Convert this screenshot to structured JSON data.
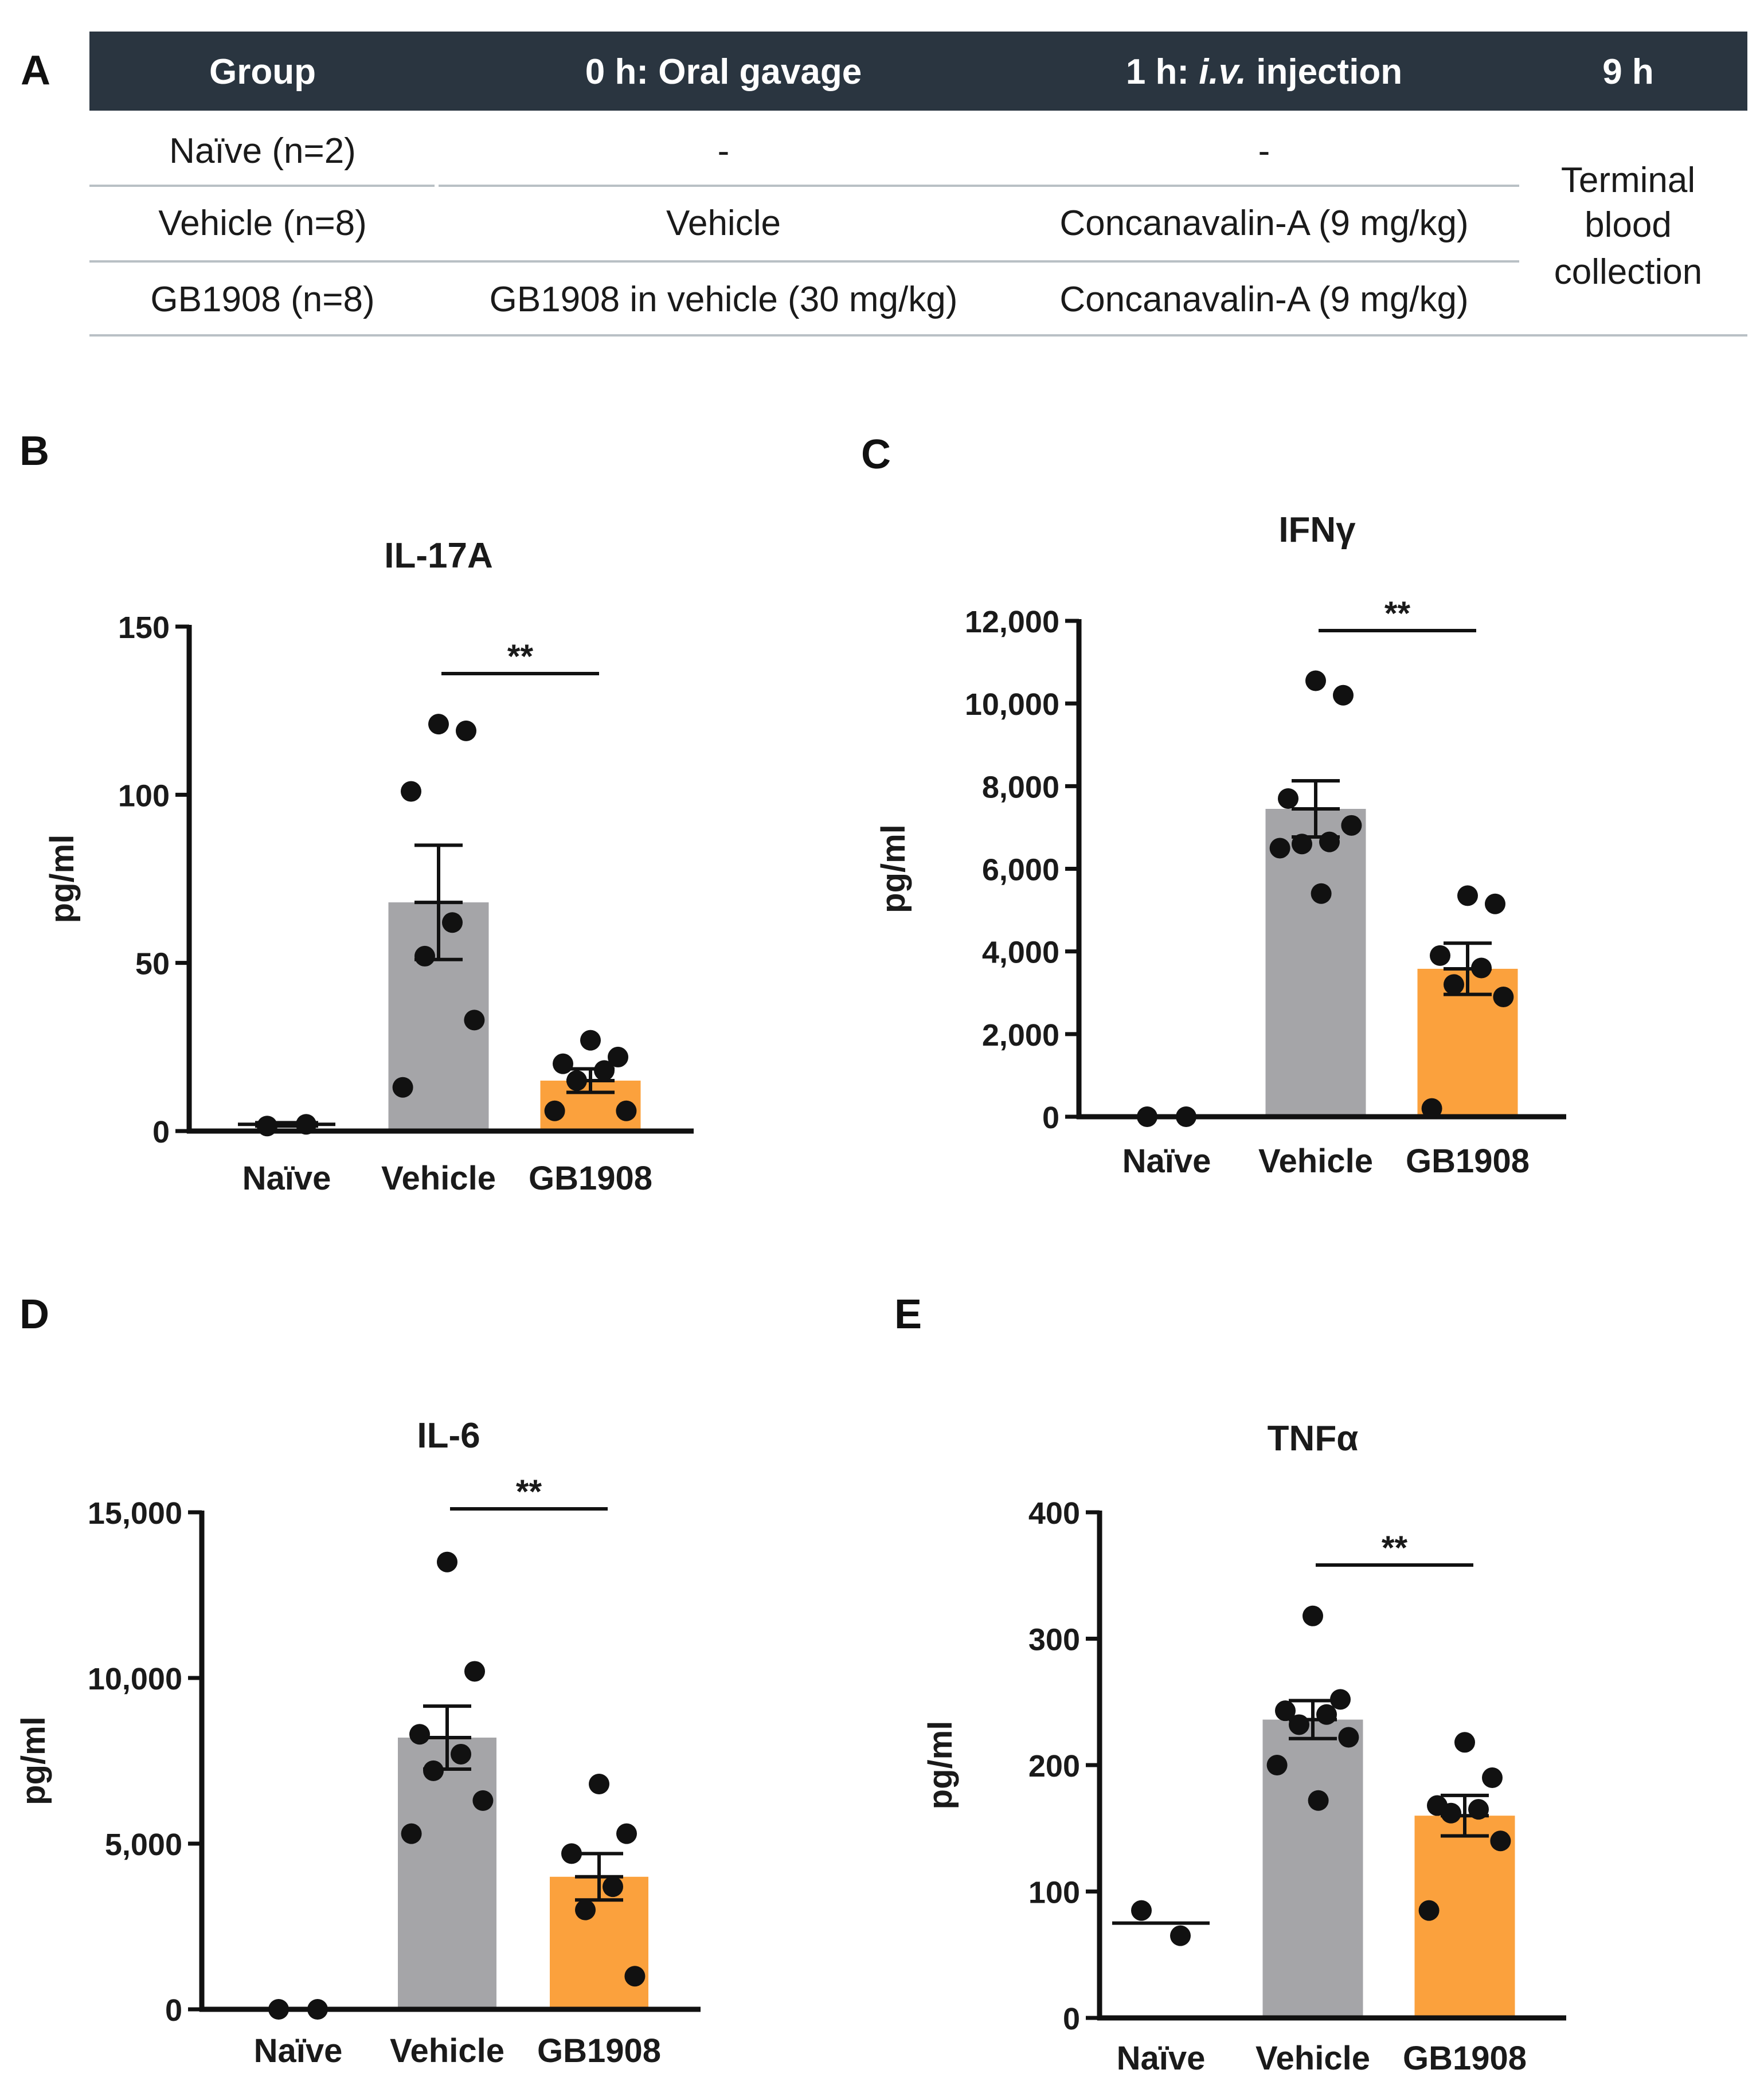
{
  "panels": {
    "A": "A",
    "B": "B",
    "C": "C",
    "D": "D",
    "E": "E"
  },
  "colors": {
    "header_bg": "#2a3540",
    "rule": "#b9c0c5",
    "vehicle_bar": "#a5a5a8",
    "gb1908_bar": "#fba13d",
    "axis": "#111111"
  },
  "table": {
    "headers": [
      "Group",
      "0 h: Oral gavage",
      "1 h: ",
      "9 h"
    ],
    "header_iv": "i.v.",
    "header_injection": " injection",
    "rows": [
      {
        "group": "Naïve (n=2)",
        "gavage": "-",
        "injection": "-"
      },
      {
        "group": "Vehicle (n=8)",
        "gavage": "Vehicle",
        "injection": "Concanavalin-A (9 mg/kg)"
      },
      {
        "group": "GB1908 (n=8)",
        "gavage": "GB1908 in vehicle (30 mg/kg)",
        "injection": "Concanavalin-A (9 mg/kg)"
      }
    ],
    "terminal": [
      "Terminal",
      "blood",
      "collection"
    ]
  },
  "chart_data": [
    {
      "id": "B",
      "type": "bar",
      "title": "IL-17A",
      "ylabel": "pg/ml",
      "xlabel": "",
      "categories": [
        "Naïve",
        "Vehicle",
        "GB1908"
      ],
      "means": [
        2,
        68,
        15
      ],
      "sem": [
        0.5,
        17,
        3.5
      ],
      "ylim": [
        0,
        150
      ],
      "yticks": [
        0,
        50,
        100,
        150
      ],
      "ytick_labels": [
        "0",
        "50",
        "100",
        "150"
      ],
      "points": [
        [
          1.5,
          2
        ],
        [
          121,
          119,
          101,
          62,
          52,
          33,
          13
        ],
        [
          27,
          22,
          20,
          18,
          15,
          6,
          6
        ]
      ],
      "significance": {
        "label": "**",
        "from": "Vehicle",
        "to": "GB1908"
      }
    },
    {
      "id": "C",
      "type": "bar",
      "title": "IFNγ",
      "ylabel": "pg/ml",
      "xlabel": "",
      "categories": [
        "Naïve",
        "Vehicle",
        "GB1908"
      ],
      "means": [
        0,
        7450,
        3580
      ],
      "sem": [
        0,
        680,
        620
      ],
      "ylim": [
        0,
        12000
      ],
      "yticks": [
        0,
        2000,
        4000,
        6000,
        8000,
        10000,
        12000
      ],
      "ytick_labels": [
        "0",
        "2,000",
        "4,000",
        "6,000",
        "8,000",
        "10,000",
        "12,000"
      ],
      "points": [
        [
          0,
          0
        ],
        [
          10550,
          10200,
          7700,
          6650,
          6600,
          7050,
          6500,
          5400
        ],
        [
          5350,
          5150,
          3900,
          3600,
          3200,
          2900,
          200
        ]
      ],
      "significance": {
        "label": "**",
        "from": "Vehicle",
        "to": "GB1908"
      }
    },
    {
      "id": "D",
      "type": "bar",
      "title": "IL-6",
      "ylabel": "pg/ml",
      "xlabel": "",
      "categories": [
        "Naïve",
        "Vehicle",
        "GB1908"
      ],
      "means": [
        0,
        8200,
        4000
      ],
      "sem": [
        0,
        950,
        700
      ],
      "ylim": [
        0,
        15000
      ],
      "yticks": [
        0,
        5000,
        10000,
        15000
      ],
      "ytick_labels": [
        "0",
        "5,000",
        "10,000",
        "15,000"
      ],
      "points": [
        [
          0,
          0
        ],
        [
          13500,
          10200,
          8300,
          7700,
          7200,
          6300,
          5300
        ],
        [
          6800,
          5300,
          4700,
          3700,
          3000,
          1000
        ]
      ],
      "significance": {
        "label": "**",
        "from": "Vehicle",
        "to": "GB1908"
      }
    },
    {
      "id": "E",
      "type": "bar",
      "title": "TNFα",
      "ylabel": "pg/ml",
      "xlabel": "",
      "categories": [
        "Naïve",
        "Vehicle",
        "GB1908"
      ],
      "means": [
        75,
        236,
        160
      ],
      "sem": [
        0,
        15,
        16
      ],
      "ylim": [
        0,
        400
      ],
      "yticks": [
        0,
        100,
        200,
        300,
        400
      ],
      "ytick_labels": [
        "0",
        "100",
        "200",
        "300",
        "400"
      ],
      "points": [
        [
          85,
          65
        ],
        [
          318,
          252,
          243,
          240,
          232,
          222,
          200,
          172
        ],
        [
          218,
          190,
          168,
          165,
          162,
          140,
          85
        ]
      ],
      "significance": {
        "label": "**",
        "from": "Vehicle",
        "to": "GB1908"
      }
    }
  ]
}
